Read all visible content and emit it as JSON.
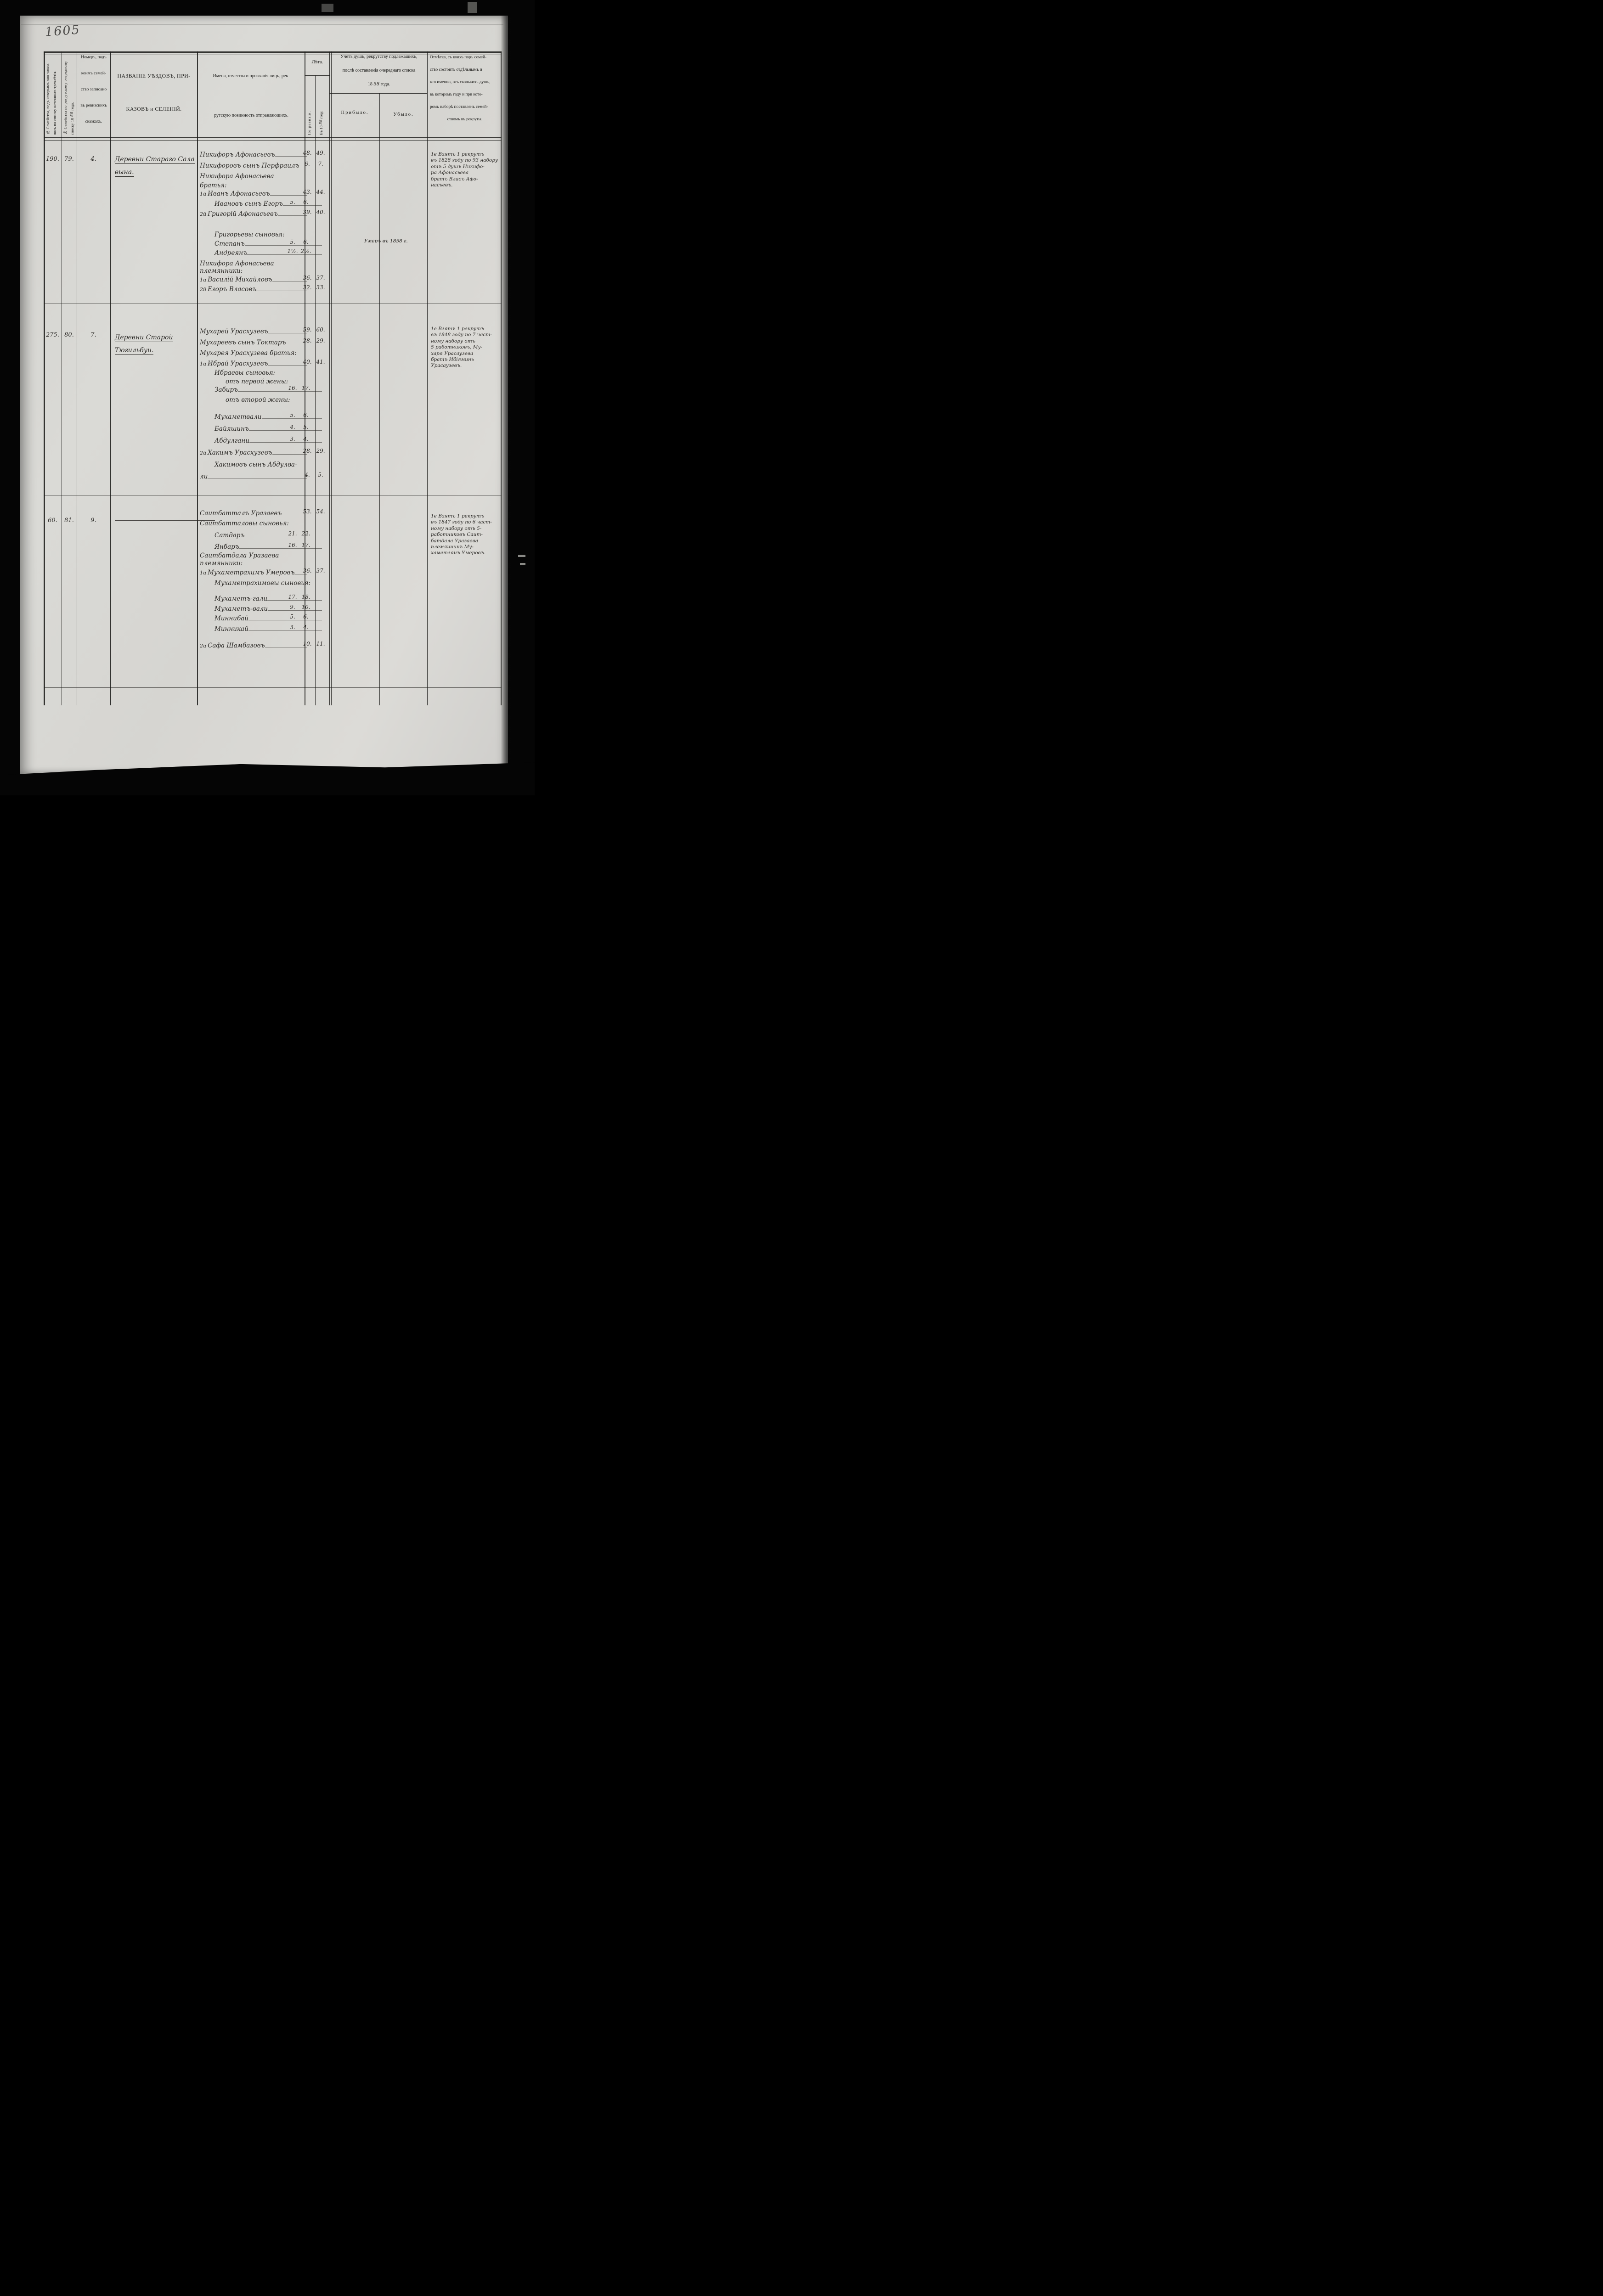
{
  "page_number": "1605",
  "header": {
    "col_family_prev": {
      "line1": "№ Семейства, подъ которымъ оно значи-",
      "line2": "лось по списку истекшаго трехлѣтія."
    },
    "col_family_current": {
      "line1": "№ Семейства по рекрутскому очередному",
      "line2_pre": "списку 18",
      "line2_year": "58",
      "line2_post": "года."
    },
    "col_revision": {
      "lines": [
        "Номеръ, подъ",
        "коимъ семей-",
        "ство записано",
        "въ ревизскихъ",
        "сказкахъ."
      ]
    },
    "col_territory": {
      "line1": "НАЗВАНІЕ УѢЗДОВЪ, ПРИ-",
      "line2": "КАЗОВЪ и СЕЛЕНІЙ."
    },
    "col_persons": {
      "line1": "Имена, отчества и прозванія лицъ, рек-",
      "line2": "рутскую повинность отправляющихъ."
    },
    "col_age": {
      "title": "Лѣта.",
      "sub1": "По ревизіи.",
      "sub2_pre": "Въ 18",
      "sub2_year": "58",
      "sub2_post": "году."
    },
    "col_account": {
      "line1": "Учетъ душъ, рекрутству подлежащихъ,",
      "line2": "послѣ составленія очереднаго списка",
      "line3_pre": "18",
      "line3_year": "58",
      "line3_post": "года.",
      "sub1": "Прибыло.",
      "sub2": "Убыло."
    },
    "col_note": {
      "lines": [
        "Отмѣтка, съ коихъ поръ семей-",
        "ство состоитъ отдѣльнымъ и",
        "кто именно, отъ сколькихъ душъ,",
        "въ которомъ году и при кото-",
        "ромъ наборѣ поставленъ семей-",
        "ствомъ въ рекруты."
      ]
    }
  },
  "families": [
    {
      "no_prev": "190.",
      "no_current": "79.",
      "no_revision": "4.",
      "village_lines": [
        "Деревни Стараго Сала",
        "вына."
      ],
      "members": [
        {
          "text": "Никифоръ Афонасьевъ",
          "a1": "48.",
          "a2": "49.",
          "dash": true
        },
        {
          "text": "Никифоровъ сынъ Перфраилъ",
          "a1": "6.",
          "a2": "7."
        },
        {
          "text": "Никифора Афонасьева",
          "label": true
        },
        {
          "text": "братья:",
          "label": true
        },
        {
          "pre": "1й",
          "text": "Иванъ Афонасьевъ",
          "a1": "43.",
          "a2": "44.",
          "dash": true
        },
        {
          "text": "Ивановъ сынъ Егоръ",
          "ind": 1,
          "a1": "5.",
          "a2": "6.",
          "dash": true
        },
        {
          "pre": "2й",
          "text": "Григорій Афонасьевъ",
          "a1": "39.",
          "a2": "40.",
          "dash": true
        },
        {
          "text": "Григорьевы сыновья:",
          "label": true,
          "ind": 1
        },
        {
          "text": "Степанъ",
          "ind": 1,
          "a1": "5.",
          "a2": "6.",
          "dash": true,
          "ubylo": "Умеръ въ 1858 г."
        },
        {
          "text": "Андреянъ",
          "ind": 1,
          "a1": "1½.",
          "a2": "2½.",
          "dash": true
        },
        {
          "text": "Никифора Афонасьева",
          "label": true
        },
        {
          "text": "племянники:",
          "label": true
        },
        {
          "pre": "1й",
          "text": "Василій Михайловъ",
          "a1": "36.",
          "a2": "37.",
          "dash": true
        },
        {
          "pre": "2й",
          "text": "Егоръ Власовъ",
          "a1": "32.",
          "a2": "33.",
          "dash": true
        }
      ],
      "note_lines": [
        "1е Взятъ 1 рекрутъ",
        "въ 1828 году по 93 набору",
        "отъ 5 душъ Никифо-",
        "ра Афонасьева",
        "братъ Власъ Афо-",
        "насьевъ."
      ]
    },
    {
      "no_prev": "275.",
      "no_current": "80.",
      "no_revision": "7.",
      "village_lines": [
        "Деревни Старой",
        "Тюгильбуи."
      ],
      "members": [
        {
          "text": "Мухарей Урасхузевъ",
          "a1": "59.",
          "a2": "60.",
          "dash": true
        },
        {
          "text": "Мухареевъ сынъ Токтаръ",
          "a1": "28.",
          "a2": "29."
        },
        {
          "text": "Мухарея Урасхузева братья:",
          "label": true
        },
        {
          "pre": "1й",
          "text": "Ибрай Урасхузевъ",
          "a1": "40.",
          "a2": "41.",
          "dash": true
        },
        {
          "text": "Ибраевы сыновья:",
          "label": true,
          "ind": 1
        },
        {
          "text": "отъ первой жены:",
          "label": true,
          "ind": 2
        },
        {
          "text": "Забиръ",
          "ind": 1,
          "a1": "16.",
          "a2": "17.",
          "dash": true
        },
        {
          "text": "отъ второй жены:",
          "label": true,
          "ind": 2
        },
        {
          "text": "Мухаметвали",
          "ind": 1,
          "a1": "5.",
          "a2": "6.",
          "dash": true
        },
        {
          "text": "Байяшинъ",
          "ind": 1,
          "a1": "4.",
          "a2": "5.",
          "dash": true
        },
        {
          "text": "Абдулгани",
          "ind": 1,
          "a1": "3.",
          "a2": "4.",
          "dash": true
        },
        {
          "pre": "2й",
          "text": "Хакимъ Урасхузевъ",
          "a1": "28.",
          "a2": "29.",
          "dash": true
        },
        {
          "text": "Хакимовъ сынъ Абдулва-",
          "label": true,
          "ind": 1
        },
        {
          "text": "ли",
          "a1": "4.",
          "a2": "5.",
          "dash": true
        }
      ],
      "note_lines": [
        "1е Взятъ 1 рекрутъ",
        "въ 1848 году по 7 част-",
        "ному набору отъ",
        "5 работниковъ, Му-",
        "харя Урасаузева",
        "братъ Ибіяминь",
        "Урасаузевъ."
      ]
    },
    {
      "no_prev": "60.",
      "no_current": "81.",
      "no_revision": "9.",
      "village_dash": true,
      "village_lines": [],
      "members": [
        {
          "text": "Саитбатталъ Уразаевъ",
          "a1": "53.",
          "a2": "54.",
          "dash": true
        },
        {
          "text": "Саитбатталовы сыновья:",
          "label": true
        },
        {
          "text": "Сатдаръ",
          "ind": 1,
          "a1": "21.",
          "a2": "22.",
          "dash": true
        },
        {
          "text": "Янбаръ",
          "ind": 1,
          "a1": "16.",
          "a2": "17.",
          "dash": true
        },
        {
          "text": "Саитбатдала Уразаева",
          "label": true
        },
        {
          "text": "племянники:",
          "label": true
        },
        {
          "pre": "1й",
          "text": "Мухаметрахимъ Умеровъ",
          "a1": "36.",
          "a2": "37.",
          "dash": true
        },
        {
          "text": "Мухаметрахимовы сыновья:",
          "label": true,
          "ind": 1
        },
        {
          "text": "Мухаметъ-гали",
          "ind": 1,
          "a1": "17.",
          "a2": "18.",
          "dash": true
        },
        {
          "text": "Мухаметъ-вали",
          "ind": 1,
          "a1": "9.",
          "a2": "10.",
          "dash": true
        },
        {
          "text": "Миннибай",
          "ind": 1,
          "a1": "5.",
          "a2": "6.",
          "dash": true
        },
        {
          "text": "Минникай",
          "ind": 1,
          "a1": "3.",
          "a2": "4.",
          "dash": true
        },
        {
          "pre": "2й",
          "text": "Сафа Шамбазовъ",
          "a1": "10.",
          "a2": "11.",
          "dash": true
        }
      ],
      "note_lines": [
        "1е Взятъ 1 рекрутъ",
        "въ 1847 году по 6 част-",
        "ному набору отъ 5-",
        "работниковъ Саит-",
        "батдала Уразаева",
        "племянникъ Му-",
        "хаметзянъ Умеровъ."
      ]
    }
  ]
}
